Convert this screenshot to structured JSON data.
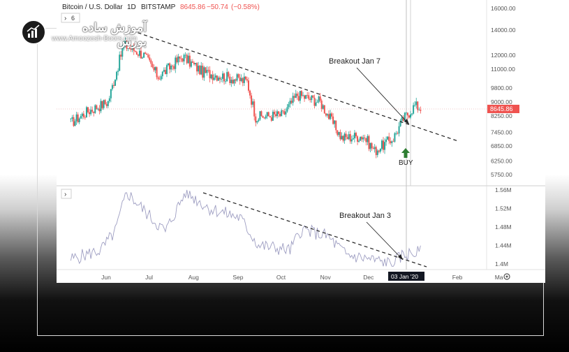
{
  "header": {
    "symbol": "Bitcoin / U.S. Dollar",
    "interval": "1D",
    "exchange": "BITSTAMP",
    "price": "8645.86",
    "change": "−50.74",
    "change_pct": "(−0.58%)",
    "indicator_count": "6"
  },
  "logo": {
    "name": "آموزش ساده بورس",
    "site": "www.Amoozesh-Boors.com"
  },
  "annotations": {
    "breakout_price": "Breakout Jan 7",
    "breakout_volume": "Breakout Jan 3",
    "buy": "BUY",
    "crosshair_date": "03 Jan '20",
    "last_price_tag": "8645.86"
  },
  "colors": {
    "up": "#26a69a",
    "down": "#ef5350",
    "volume_line": "#9e9ec2",
    "buy_arrow": "#2e7d32",
    "price_tag": "#ef5350"
  },
  "chart_data": [
    {
      "type": "candlestick",
      "title": "Bitcoin / U.S. Dollar · 1D · BITSTAMP",
      "y_axis_scale": "log",
      "y_ticks": [
        "16000.00",
        "14000.00",
        "12000.00",
        "11000.00",
        "9800.00",
        "9000.00",
        "8250.00",
        "7450.00",
        "6850.00",
        "6250.00",
        "5750.00"
      ],
      "x_ticks": [
        "Jun",
        "Jul",
        "Aug",
        "Sep",
        "Oct",
        "Nov",
        "Dec",
        "03 Jan '20",
        "Feb",
        "Ma"
      ],
      "approx_monthly_closes": [
        {
          "x": "2019-05-20",
          "y": 7900
        },
        {
          "x": "2019-06-01",
          "y": 8500
        },
        {
          "x": "2019-06-15",
          "y": 9000
        },
        {
          "x": "2019-06-26",
          "y": 12800
        },
        {
          "x": "2019-07-10",
          "y": 12000
        },
        {
          "x": "2019-07-20",
          "y": 10500
        },
        {
          "x": "2019-08-06",
          "y": 11900
        },
        {
          "x": "2019-08-20",
          "y": 10800
        },
        {
          "x": "2019-09-05",
          "y": 10500
        },
        {
          "x": "2019-09-20",
          "y": 10200
        },
        {
          "x": "2019-09-26",
          "y": 8200
        },
        {
          "x": "2019-10-15",
          "y": 8300
        },
        {
          "x": "2019-10-25",
          "y": 9400
        },
        {
          "x": "2019-11-10",
          "y": 9000
        },
        {
          "x": "2019-11-25",
          "y": 7200
        },
        {
          "x": "2019-12-10",
          "y": 7300
        },
        {
          "x": "2019-12-18",
          "y": 6650
        },
        {
          "x": "2019-12-31",
          "y": 7200
        },
        {
          "x": "2020-01-07",
          "y": 8100
        },
        {
          "x": "2020-01-15",
          "y": 8800
        },
        {
          "x": "2020-01-19",
          "y": 8645.86
        }
      ],
      "trendline": {
        "from": {
          "x": "2019-06-26",
          "y": 13700
        },
        "to": {
          "x": "2020-02-10",
          "y": 7200
        }
      },
      "last_price": 8645.86
    },
    {
      "type": "line",
      "title": "Volume indicator",
      "y_ticks": [
        "1.56M",
        "1.52M",
        "1.48M",
        "1.44M",
        "1.4M"
      ],
      "trendline": {
        "from": {
          "x": "2019-08-08",
          "y": 1.555
        },
        "to": {
          "x": "2020-01-10",
          "y": 1.395
        }
      }
    }
  ]
}
